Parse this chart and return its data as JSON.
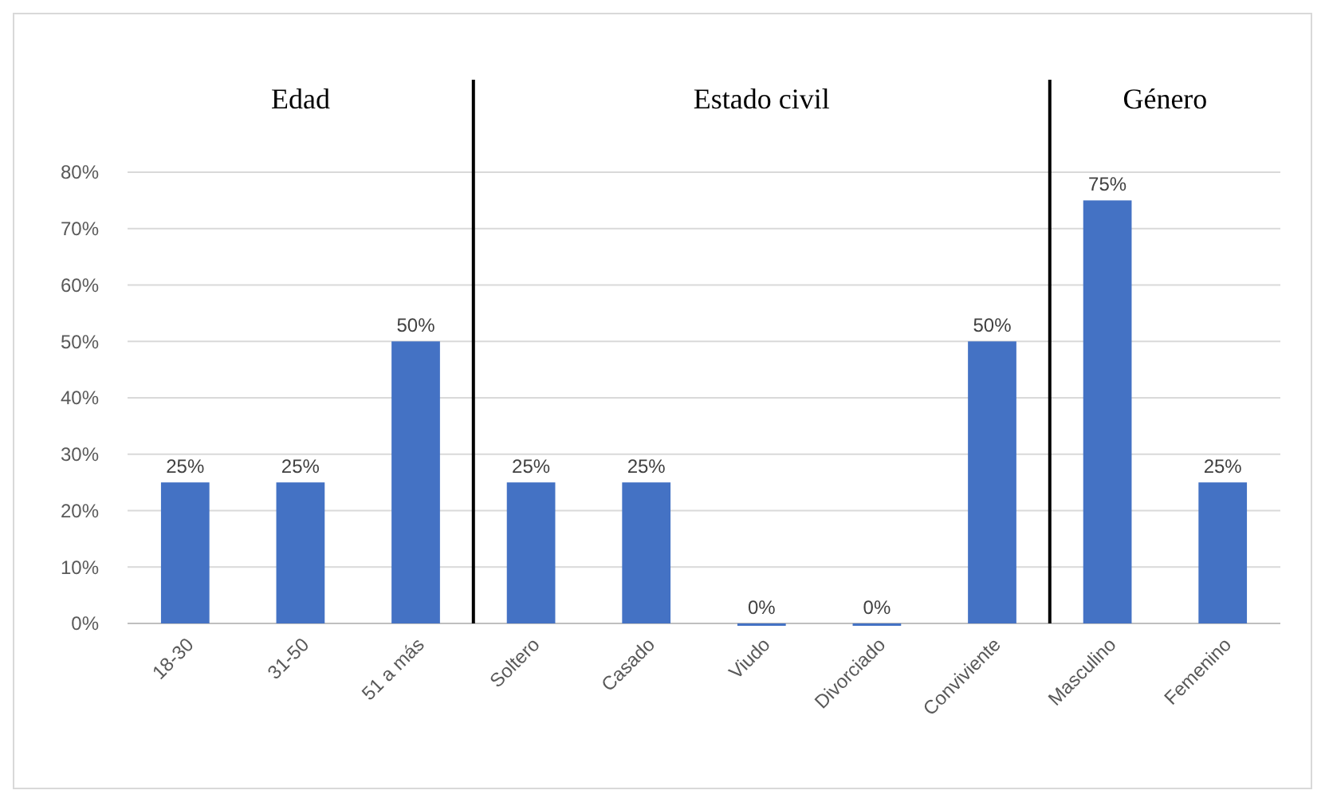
{
  "chart_data": {
    "type": "bar",
    "categories": [
      "18-30",
      "31-50",
      "51 a más",
      "Soltero",
      "Casado",
      "Viudo",
      "Divorciado",
      "Conviviente",
      "Masculino",
      "Femenino"
    ],
    "values": [
      25,
      25,
      50,
      25,
      25,
      0,
      0,
      50,
      75,
      25
    ],
    "value_labels": [
      "25%",
      "25%",
      "50%",
      "25%",
      "25%",
      "0%",
      "0%",
      "50%",
      "75%",
      "25%"
    ],
    "color": "#4472c4",
    "ylim": [
      0,
      80
    ],
    "yticks": [
      {
        "value": 0,
        "label": "0%"
      },
      {
        "value": 10,
        "label": "10%"
      },
      {
        "value": 20,
        "label": "20%"
      },
      {
        "value": 30,
        "label": "30%"
      },
      {
        "value": 40,
        "label": "40%"
      },
      {
        "value": 50,
        "label": "50%"
      },
      {
        "value": 60,
        "label": "60%"
      },
      {
        "value": 70,
        "label": "70%"
      },
      {
        "value": 80,
        "label": "80%"
      }
    ],
    "grid": "y",
    "annotations": [
      "Edad",
      "Estado civil",
      "Género"
    ]
  }
}
